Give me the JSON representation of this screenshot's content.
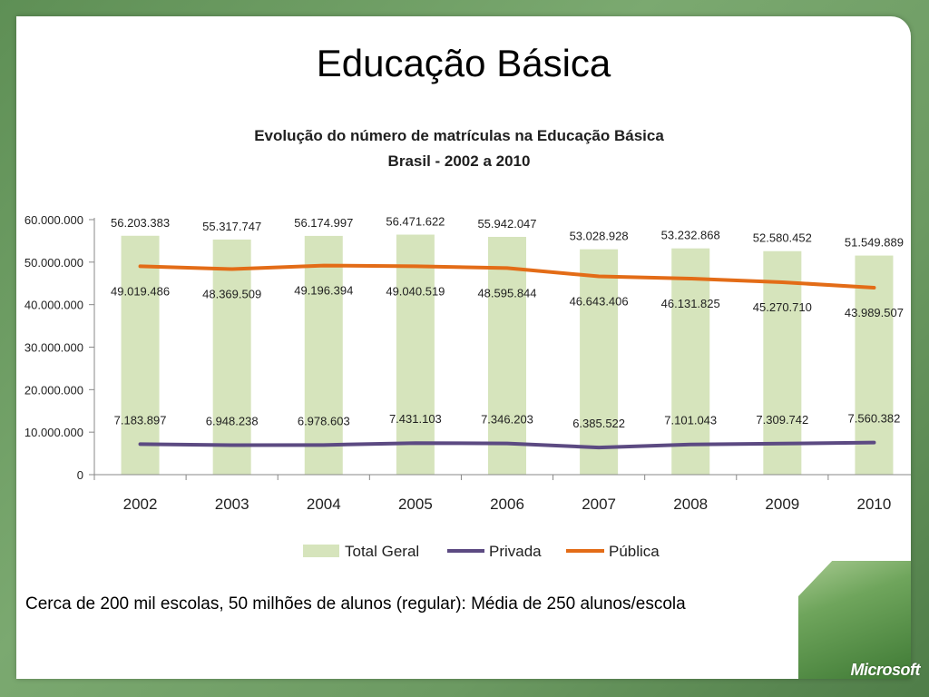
{
  "slide": {
    "title": "Educação Básica",
    "caption": "Cerca de 200 mil escolas, 50 milhões de alunos (regular): Média de 250 alunos/escola",
    "logo": "Microsoft"
  },
  "colors": {
    "total": "#d6e4bc",
    "privada": "#5c4a82",
    "publica": "#e36c17",
    "axis": "#888888"
  },
  "chart_data": {
    "type": "bar",
    "title": "Evolução do número de matrículas na Educação Básica",
    "subtitle": "Brasil - 2002 a 2010",
    "categories": [
      "2002",
      "2003",
      "2004",
      "2005",
      "2006",
      "2007",
      "2008",
      "2009",
      "2010"
    ],
    "ylim": [
      0,
      60000000
    ],
    "yticks": [
      0,
      10000000,
      20000000,
      30000000,
      40000000,
      50000000,
      60000000
    ],
    "ytick_labels": [
      "0",
      "10.000.000",
      "20.000.000",
      "30.000.000",
      "40.000.000",
      "50.000.000",
      "60.000.000"
    ],
    "grid": false,
    "legend_position": "bottom",
    "series": [
      {
        "name": "Total Geral",
        "kind": "bar",
        "values": [
          56203383,
          55317747,
          56174997,
          56471622,
          55942047,
          53028928,
          53232868,
          52580452,
          51549889
        ],
        "labels": [
          "56.203.383",
          "55.317.747",
          "56.174.997",
          "56.471.622",
          "55.942.047",
          "53.028.928",
          "53.232.868",
          "52.580.452",
          "51.549.889"
        ]
      },
      {
        "name": "Privada",
        "kind": "line",
        "values": [
          7183897,
          6948238,
          6978603,
          7431103,
          7346203,
          6385522,
          7101043,
          7309742,
          7560382
        ],
        "labels": [
          "7.183.897",
          "6.948.238",
          "6.978.603",
          "7.431.103",
          "7.346.203",
          "6.385.522",
          "7.101.043",
          "7.309.742",
          "7.560.382"
        ]
      },
      {
        "name": "Pública",
        "kind": "line",
        "values": [
          49019486,
          48369509,
          49196394,
          49040519,
          48595844,
          46643406,
          46131825,
          45270710,
          43989507
        ],
        "labels": [
          "49.019.486",
          "48.369.509",
          "49.196.394",
          "49.040.519",
          "48.595.844",
          "46.643.406",
          "46.131.825",
          "45.270.710",
          "43.989.507"
        ]
      }
    ]
  }
}
